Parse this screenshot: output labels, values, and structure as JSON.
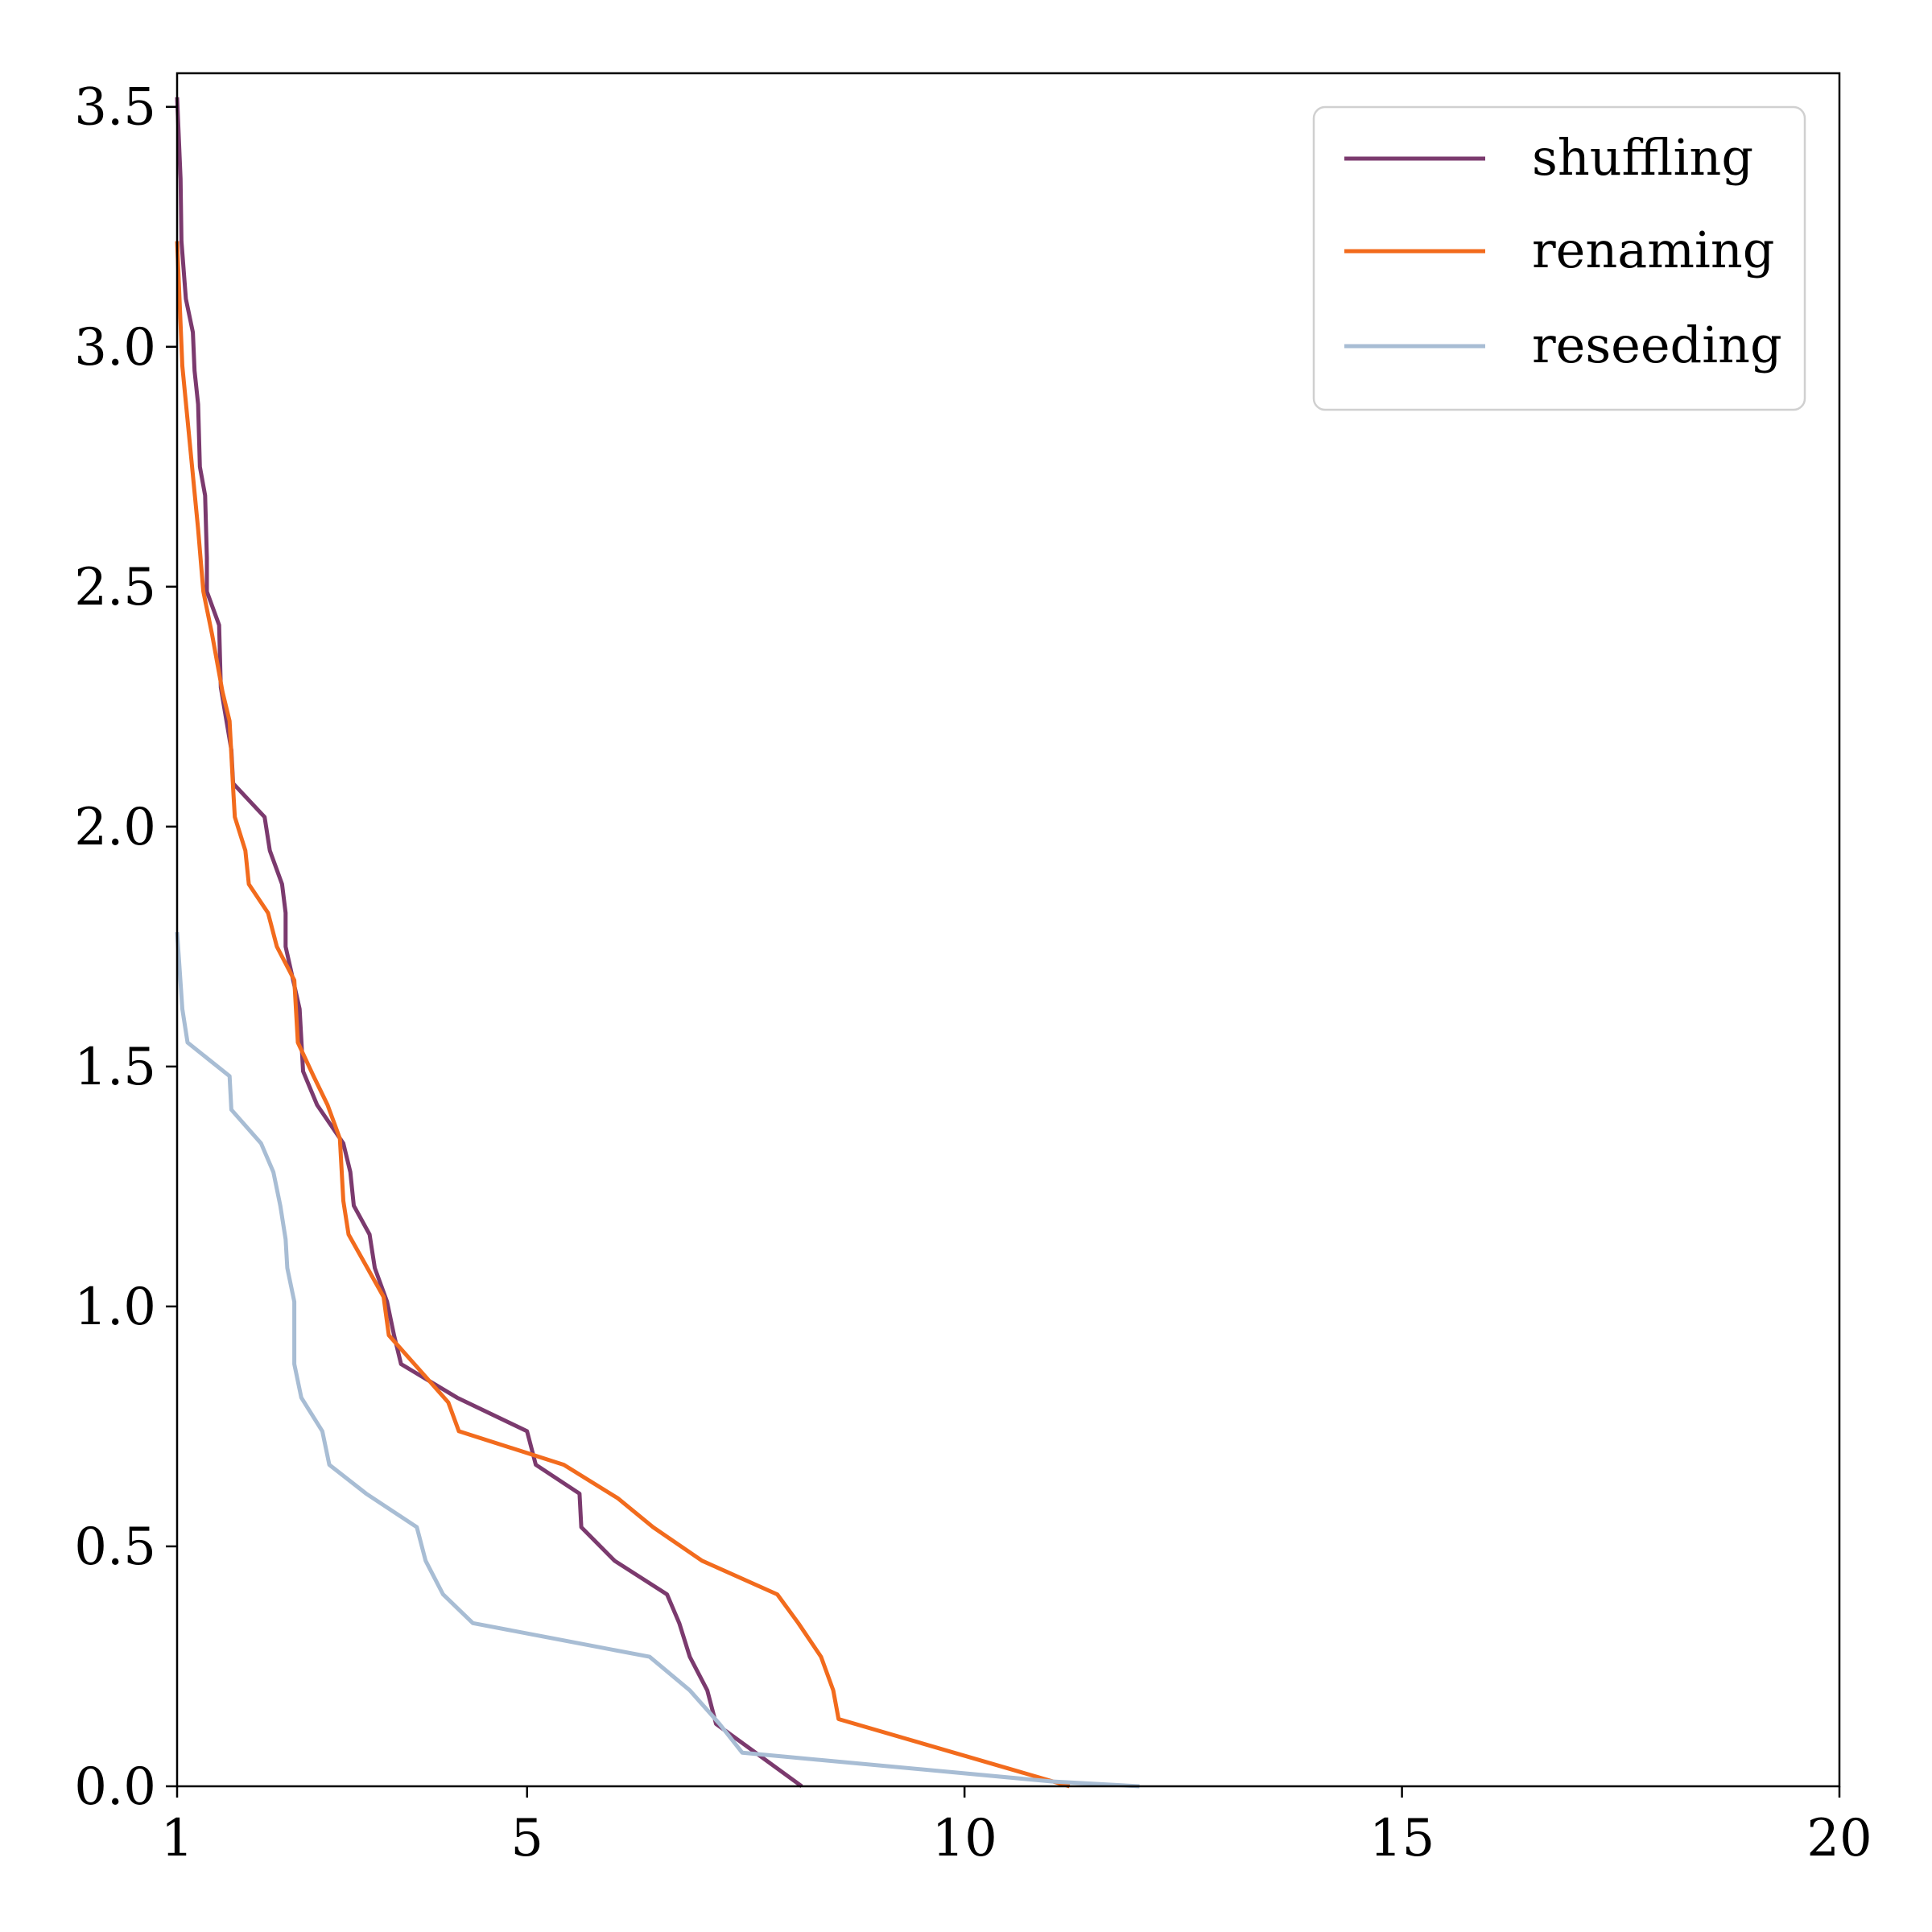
{
  "chart_data": {
    "type": "line",
    "title": "",
    "xlabel": "",
    "ylabel": "",
    "xlim": [
      1,
      20
    ],
    "ylim": [
      0,
      3.57
    ],
    "xticks": [
      1,
      5,
      10,
      15,
      20
    ],
    "xtick_labels": [
      "1",
      "5",
      "10",
      "15",
      "20"
    ],
    "yticks": [
      0,
      0.5,
      1.0,
      1.5,
      2.0,
      2.5,
      3.0,
      3.5
    ],
    "ytick_labels": [
      "0.0",
      "0.5",
      "1.0",
      "1.5",
      "2.0",
      "2.5",
      "3.0",
      "3.5"
    ],
    "grid": false,
    "legend_position": "top-right",
    "series": [
      {
        "name": "shuffling",
        "color": "#7b3a6e",
        "points": [
          [
            1.0,
            3.52
          ],
          [
            1.04,
            3.35
          ],
          [
            1.05,
            3.22
          ],
          [
            1.1,
            3.1
          ],
          [
            1.18,
            3.03
          ],
          [
            1.2,
            2.95
          ],
          [
            1.24,
            2.88
          ],
          [
            1.26,
            2.75
          ],
          [
            1.32,
            2.69
          ],
          [
            1.34,
            2.56
          ],
          [
            1.34,
            2.49
          ],
          [
            1.48,
            2.42
          ],
          [
            1.5,
            2.29
          ],
          [
            1.62,
            2.16
          ],
          [
            1.64,
            2.09
          ],
          [
            2.0,
            2.02
          ],
          [
            2.06,
            1.95
          ],
          [
            2.2,
            1.88
          ],
          [
            2.24,
            1.82
          ],
          [
            2.24,
            1.75
          ],
          [
            2.4,
            1.62
          ],
          [
            2.44,
            1.49
          ],
          [
            2.6,
            1.42
          ],
          [
            2.9,
            1.34
          ],
          [
            2.98,
            1.28
          ],
          [
            3.02,
            1.21
          ],
          [
            3.2,
            1.15
          ],
          [
            3.26,
            1.08
          ],
          [
            3.4,
            1.01
          ],
          [
            3.48,
            0.94
          ],
          [
            3.56,
            0.88
          ],
          [
            4.2,
            0.81
          ],
          [
            5.0,
            0.74
          ],
          [
            5.1,
            0.67
          ],
          [
            5.6,
            0.61
          ],
          [
            5.62,
            0.54
          ],
          [
            6.0,
            0.47
          ],
          [
            6.6,
            0.4
          ],
          [
            6.74,
            0.34
          ],
          [
            6.86,
            0.27
          ],
          [
            7.06,
            0.2
          ],
          [
            7.16,
            0.13
          ],
          [
            8.14,
            0.0
          ]
        ]
      },
      {
        "name": "renaming",
        "color": "#f26b1d",
        "points": [
          [
            1.0,
            3.22
          ],
          [
            1.06,
            2.96
          ],
          [
            1.24,
            2.62
          ],
          [
            1.3,
            2.49
          ],
          [
            1.4,
            2.4
          ],
          [
            1.52,
            2.28
          ],
          [
            1.6,
            2.22
          ],
          [
            1.64,
            2.08
          ],
          [
            1.66,
            2.02
          ],
          [
            1.78,
            1.95
          ],
          [
            1.82,
            1.88
          ],
          [
            2.04,
            1.82
          ],
          [
            2.14,
            1.75
          ],
          [
            2.34,
            1.68
          ],
          [
            2.38,
            1.55
          ],
          [
            2.56,
            1.48
          ],
          [
            2.72,
            1.42
          ],
          [
            2.86,
            1.35
          ],
          [
            2.9,
            1.22
          ],
          [
            2.96,
            1.15
          ],
          [
            3.36,
            1.02
          ],
          [
            3.42,
            0.94
          ],
          [
            3.76,
            0.87
          ],
          [
            4.1,
            0.8
          ],
          [
            4.22,
            0.74
          ],
          [
            5.42,
            0.67
          ],
          [
            6.04,
            0.6
          ],
          [
            6.44,
            0.54
          ],
          [
            7.0,
            0.47
          ],
          [
            7.86,
            0.4
          ],
          [
            8.1,
            0.34
          ],
          [
            8.36,
            0.27
          ],
          [
            8.5,
            0.2
          ],
          [
            8.56,
            0.14
          ],
          [
            11.2,
            0.0
          ]
        ]
      },
      {
        "name": "reseeding",
        "color": "#a8bdd4",
        "points": [
          [
            1.0,
            1.78
          ],
          [
            1.06,
            1.62
          ],
          [
            1.12,
            1.55
          ],
          [
            1.6,
            1.48
          ],
          [
            1.62,
            1.41
          ],
          [
            1.96,
            1.34
          ],
          [
            2.1,
            1.28
          ],
          [
            2.18,
            1.21
          ],
          [
            2.24,
            1.14
          ],
          [
            2.26,
            1.08
          ],
          [
            2.34,
            1.01
          ],
          [
            2.34,
            0.88
          ],
          [
            2.42,
            0.81
          ],
          [
            2.66,
            0.74
          ],
          [
            2.74,
            0.67
          ],
          [
            3.16,
            0.61
          ],
          [
            3.74,
            0.54
          ],
          [
            3.84,
            0.47
          ],
          [
            4.04,
            0.4
          ],
          [
            4.38,
            0.34
          ],
          [
            6.4,
            0.27
          ],
          [
            6.86,
            0.2
          ],
          [
            7.2,
            0.13
          ],
          [
            7.46,
            0.07
          ],
          [
            11.0,
            0.01
          ],
          [
            12.0,
            0.0
          ]
        ]
      }
    ]
  }
}
